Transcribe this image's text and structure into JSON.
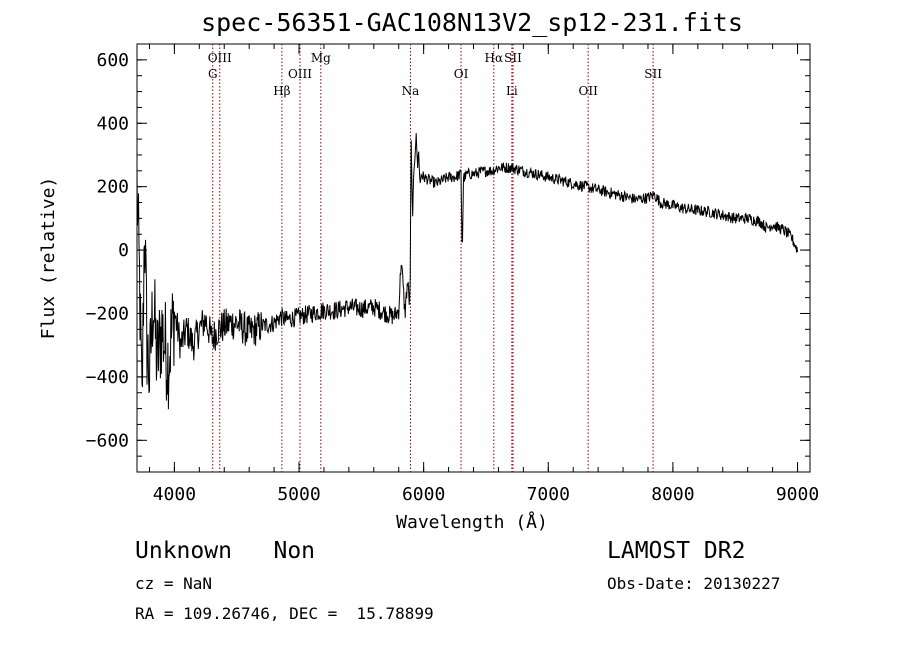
{
  "chart_data": {
    "type": "line",
    "title": "spec-56351-GAC108N13V2_sp12-231.fits",
    "xlabel": "Wavelength (Å)",
    "ylabel": "Flux (relative)",
    "xlim": [
      3700,
      9100
    ],
    "ylim": [
      -700,
      650
    ],
    "x_ticks": [
      4000,
      5000,
      6000,
      7000,
      8000,
      9000
    ],
    "y_ticks": [
      -600,
      -400,
      -200,
      0,
      200,
      400,
      600
    ],
    "x_tick_labels": [
      "4000",
      "5000",
      "6000",
      "7000",
      "8000",
      "9000"
    ],
    "y_tick_labels": [
      "−600",
      "−400",
      "−200",
      "0",
      "200",
      "400",
      "600"
    ],
    "line_color": "#000000",
    "marker_color": "#8b0000",
    "series": [
      {
        "x": [
          3700,
          3720,
          3740,
          3760,
          3780,
          3800,
          3830,
          3860,
          3900,
          3950,
          4000,
          4050,
          4100,
          4150,
          4200,
          4250,
          4300,
          4350,
          4400,
          4450,
          4500,
          4600,
          4700,
          4800,
          4850,
          4900,
          5000,
          5100,
          5200,
          5300,
          5400,
          5500,
          5600,
          5700,
          5760,
          5800,
          5820,
          5850,
          5870,
          5890,
          5900,
          5910,
          5920,
          5930,
          5940,
          5950,
          5960,
          5970,
          5980,
          6000,
          6050,
          6100,
          6150,
          6200,
          6250,
          6300,
          6310,
          6320,
          6330,
          6350,
          6400,
          6500,
          6550,
          6600,
          6700,
          6800,
          6900,
          7000,
          7100,
          7200,
          7300,
          7400,
          7500,
          7600,
          7700,
          7800,
          7850,
          7900,
          8000,
          8100,
          8200,
          8300,
          8400,
          8500,
          8600,
          8700,
          8750,
          8800,
          8850,
          8900,
          8950,
          9000
        ],
        "y": [
          200,
          -100,
          -500,
          100,
          -300,
          -400,
          -150,
          -350,
          -250,
          -350,
          -200,
          -300,
          -250,
          -300,
          -250,
          -220,
          -280,
          -250,
          -240,
          -230,
          -230,
          -260,
          -240,
          -230,
          -210,
          -220,
          -210,
          -200,
          -190,
          -190,
          -180,
          -185,
          -180,
          -200,
          -210,
          -190,
          -30,
          -200,
          -100,
          -180,
          340,
          100,
          220,
          300,
          380,
          250,
          320,
          200,
          240,
          230,
          220,
          210,
          220,
          230,
          230,
          240,
          -20,
          230,
          230,
          240,
          240,
          250,
          250,
          260,
          260,
          250,
          240,
          230,
          220,
          210,
          200,
          190,
          180,
          170,
          160,
          165,
          175,
          150,
          140,
          130,
          125,
          120,
          110,
          100,
          100,
          90,
          70,
          80,
          70,
          60,
          40,
          0
        ]
      }
    ],
    "lines": [
      {
        "label": "G",
        "wl": 4307.7,
        "row": 2
      },
      {
        "label": "OIII",
        "wl": 4364,
        "row": 1
      },
      {
        "label": "Hβ",
        "wl": 4862.7,
        "row": 3
      },
      {
        "label": "OIII",
        "wl": 5008,
        "row": 2
      },
      {
        "label": "Mg",
        "wl": 5175,
        "row": 1
      },
      {
        "label": "Na",
        "wl": 5894,
        "row": 3
      },
      {
        "label": "OI",
        "wl": 6300,
        "row": 2
      },
      {
        "label": "Hα",
        "wl": 6562.8,
        "row": 1
      },
      {
        "label": "SII",
        "wl": 6717,
        "row": 1
      },
      {
        "label": "Li",
        "wl": 6707.8,
        "row": 3
      },
      {
        "label": "OII",
        "wl": 7320,
        "row": 3
      },
      {
        "label": "SII",
        "wl": 7841,
        "row": 2
      }
    ]
  },
  "info": {
    "class_text": "Unknown   Non",
    "cz_text": "cz = NaN",
    "coords_text": "RA = 109.26746, DEC =  15.78899",
    "survey_text": "LAMOST DR2",
    "obs_date_text": "Obs-Date: 20130227"
  }
}
